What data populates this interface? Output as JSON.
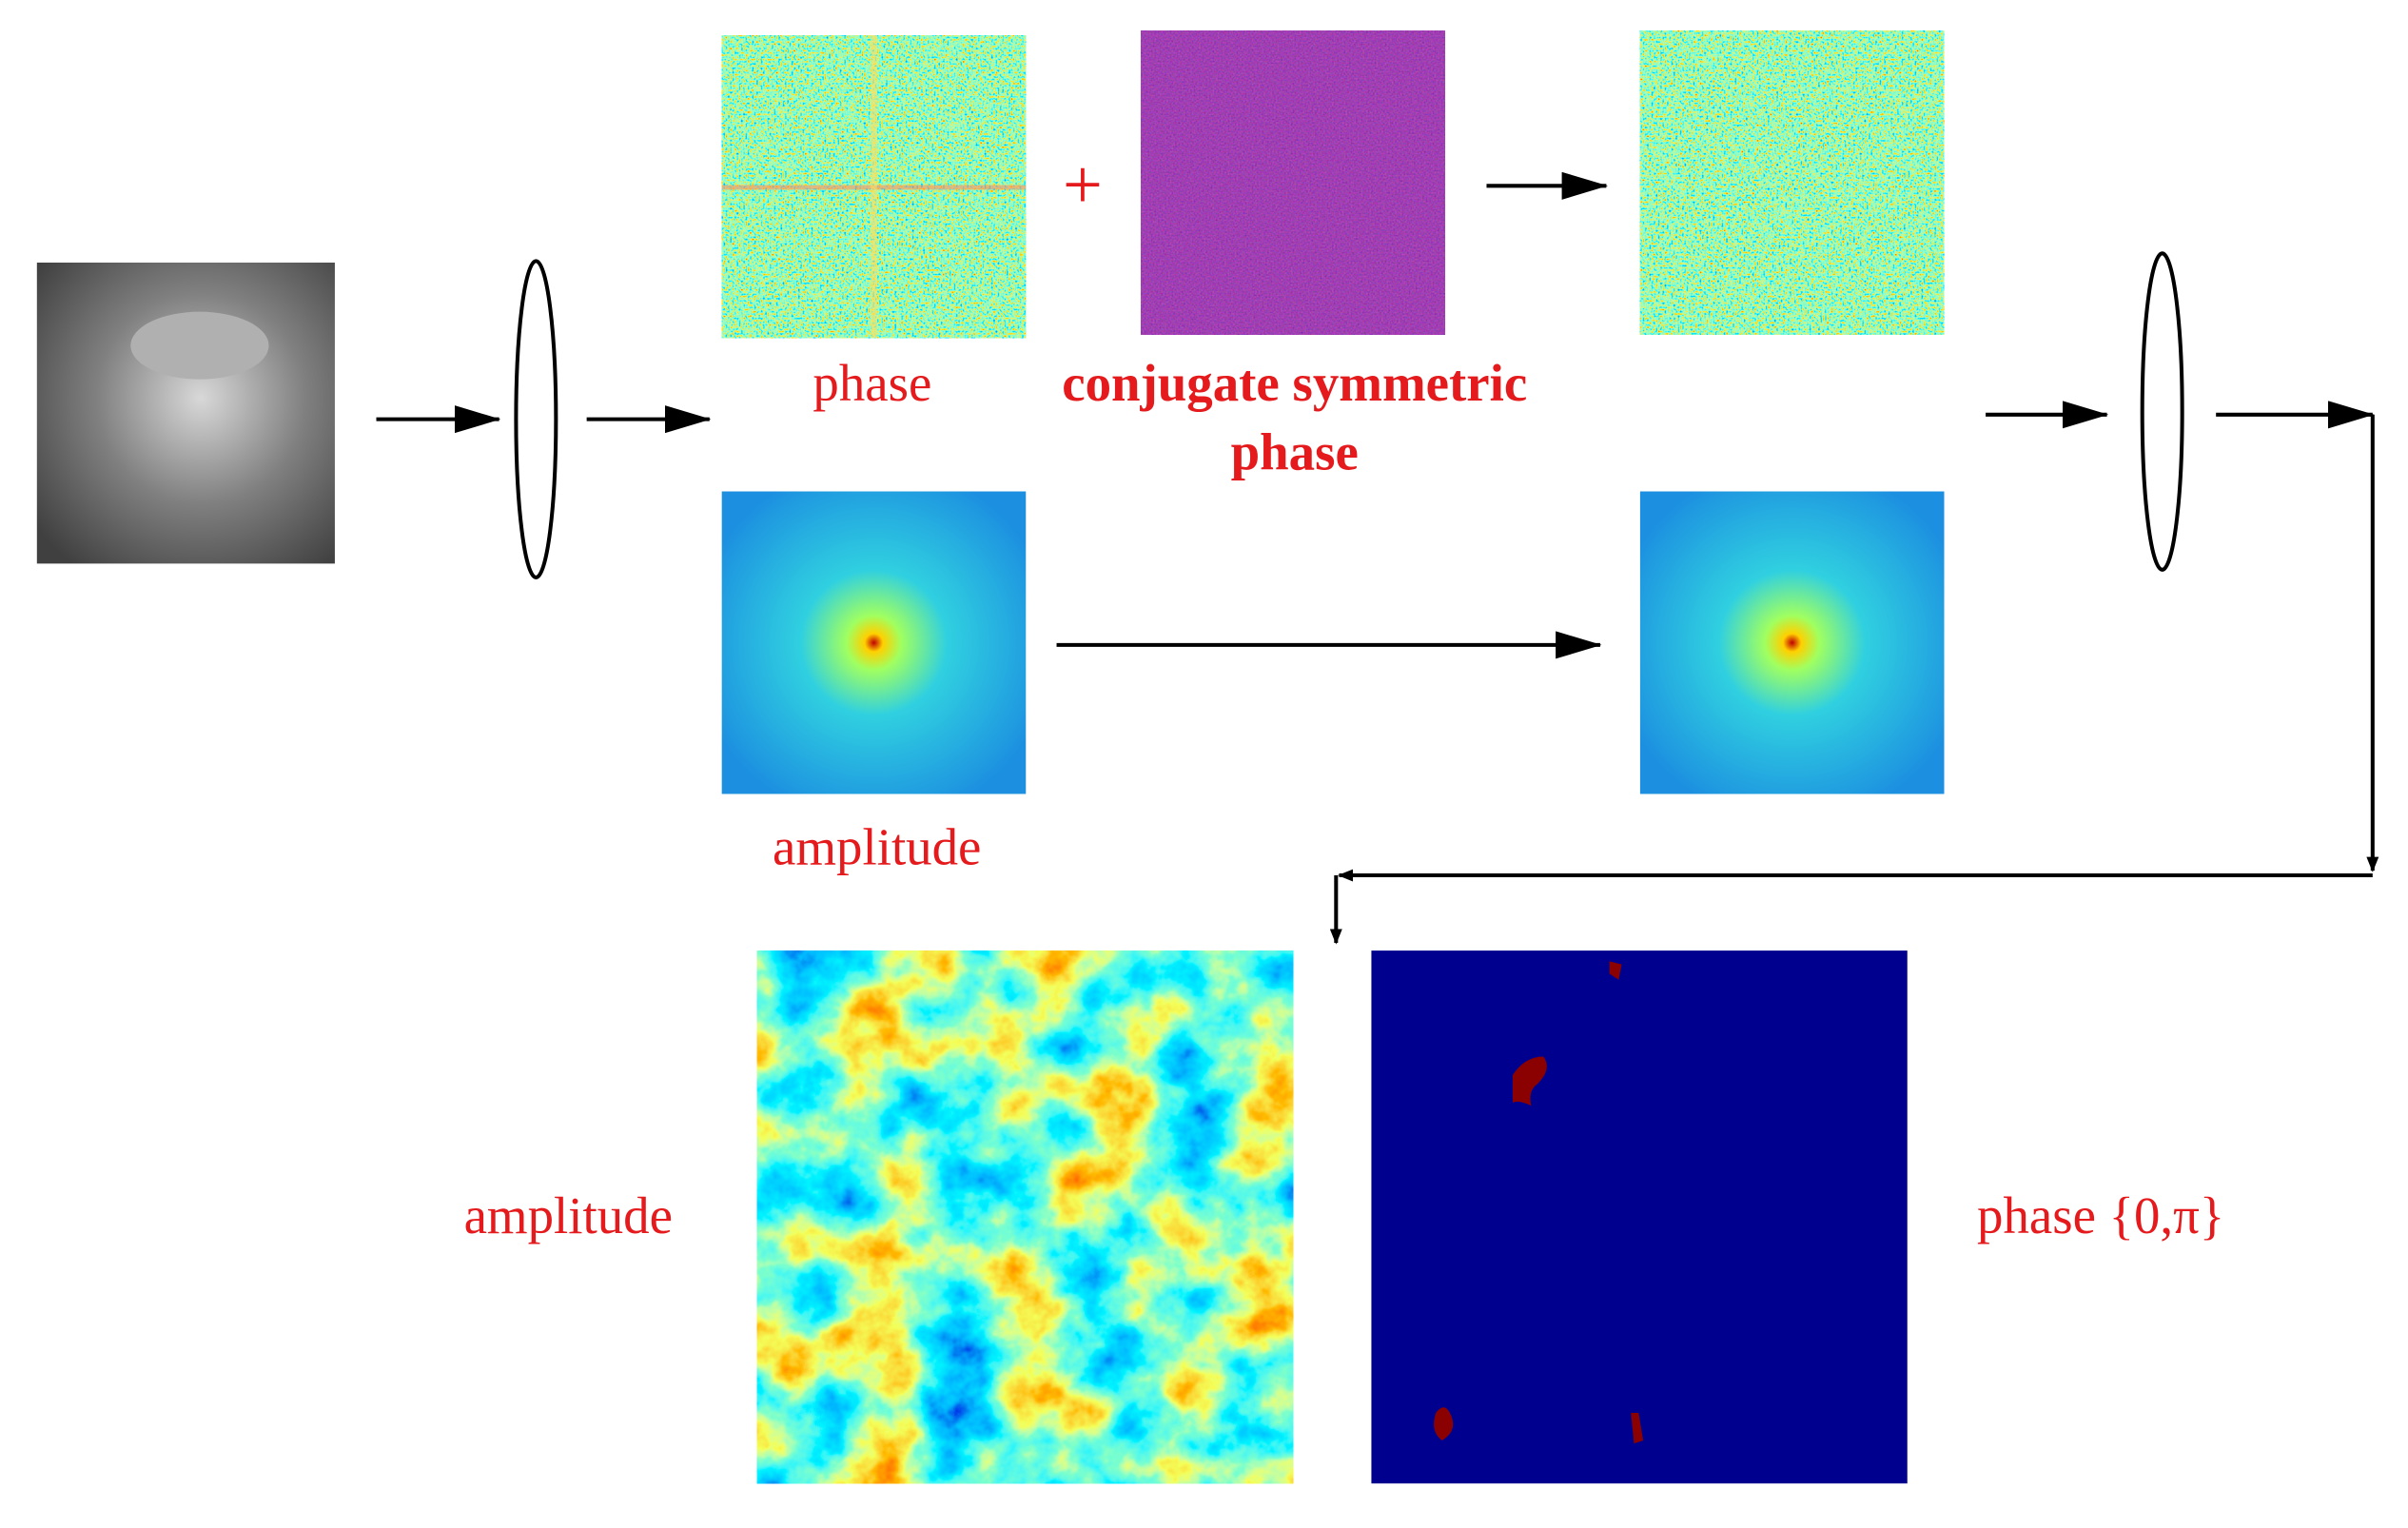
{
  "top_row": {
    "phase_label": "phase",
    "plus": "+",
    "conjugate_label": [
      "conjugate symmetric",
      "phase"
    ]
  },
  "middle_row": {
    "amplitude_label": "amplitude"
  },
  "output": {
    "amplitude_label": "amplitude",
    "phase_label": "phase {0,π}"
  }
}
